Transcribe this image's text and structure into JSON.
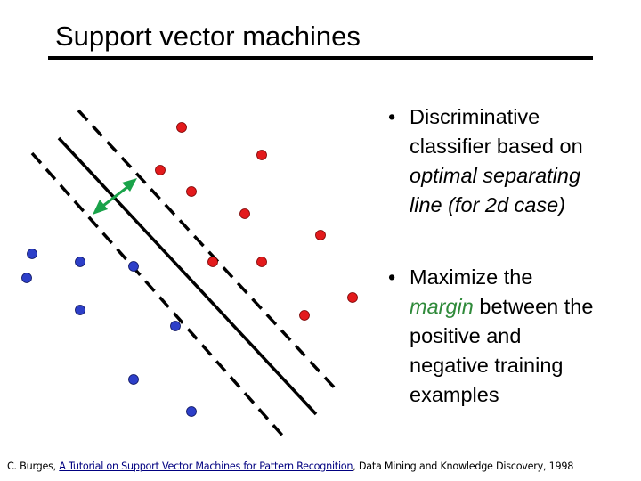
{
  "title": "Support vector machines",
  "bullets": [
    {
      "marker": "•",
      "lines": [
        [
          {
            "text": "Discriminative"
          }
        ],
        [
          {
            "text": "classifier based on"
          }
        ],
        [
          {
            "text": "optimal separating",
            "style": "italic"
          }
        ],
        [
          {
            "text": "line (for 2d case)",
            "style": "italic"
          }
        ]
      ]
    },
    {
      "marker": "•",
      "lines": [
        [
          {
            "text": "Maximize the"
          }
        ],
        [
          {
            "text": "margin",
            "style": "italic-green"
          },
          {
            "text": " between the"
          }
        ],
        [
          {
            "text": "positive and"
          }
        ],
        [
          {
            "text": "negative training"
          }
        ],
        [
          {
            "text": "examples"
          }
        ]
      ]
    }
  ],
  "citation": {
    "author": "C. Burges, ",
    "link_text": "A Tutorial on Support Vector Machines for Pattern Recognition",
    "rest": ",  Data Mining and Knowledge Discovery, 1998"
  },
  "colors": {
    "positive_points": "#e31a1c",
    "negative_points": "#2d3fc8",
    "margin_arrow": "#1aa34a",
    "separator": "#000000"
  }
}
